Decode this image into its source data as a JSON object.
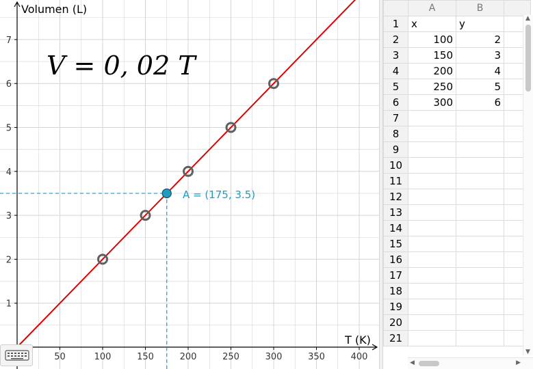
{
  "graph": {
    "y_axis_title": "Volumen (L)",
    "x_axis_title": "T (K)",
    "equation": "V = 0, 02 T",
    "x_ticks": [
      "50",
      "100",
      "150",
      "200",
      "250",
      "300",
      "350",
      "400"
    ],
    "y_ticks": [
      "1",
      "2",
      "3",
      "4",
      "5",
      "6",
      "7"
    ],
    "point_label": "A = (175, 3.5)",
    "line_color": "#e00000",
    "point_color": "#1e9bbf",
    "grid_color": "#d4d4d4"
  },
  "chart_data": {
    "type": "scatter",
    "x": [
      100,
      150,
      200,
      250,
      300
    ],
    "y": [
      2,
      3,
      4,
      5,
      6
    ],
    "line": {
      "slope": 0.02,
      "intercept": 0
    },
    "point_A": {
      "x": 175,
      "y": 3.5
    },
    "xlabel": "T (K)",
    "ylabel": "Volumen (L)",
    "xlim": [
      0,
      420
    ],
    "ylim": [
      0,
      7.8
    ],
    "grid": true
  },
  "spreadsheet": {
    "columns": [
      "A",
      "B"
    ],
    "rows": [
      {
        "num": "1",
        "a": "x",
        "b": "y"
      },
      {
        "num": "2",
        "a": "100",
        "b": "2"
      },
      {
        "num": "3",
        "a": "150",
        "b": "3"
      },
      {
        "num": "4",
        "a": "200",
        "b": "4"
      },
      {
        "num": "5",
        "a": "250",
        "b": "5"
      },
      {
        "num": "6",
        "a": "300",
        "b": "6"
      },
      {
        "num": "7",
        "a": "",
        "b": ""
      },
      {
        "num": "8",
        "a": "",
        "b": ""
      },
      {
        "num": "9",
        "a": "",
        "b": ""
      },
      {
        "num": "10",
        "a": "",
        "b": ""
      },
      {
        "num": "11",
        "a": "",
        "b": ""
      },
      {
        "num": "12",
        "a": "",
        "b": ""
      },
      {
        "num": "13",
        "a": "",
        "b": ""
      },
      {
        "num": "14",
        "a": "",
        "b": ""
      },
      {
        "num": "15",
        "a": "",
        "b": ""
      },
      {
        "num": "16",
        "a": "",
        "b": ""
      },
      {
        "num": "17",
        "a": "",
        "b": ""
      },
      {
        "num": "18",
        "a": "",
        "b": ""
      },
      {
        "num": "19",
        "a": "",
        "b": ""
      },
      {
        "num": "20",
        "a": "",
        "b": ""
      },
      {
        "num": "21",
        "a": "",
        "b": ""
      }
    ]
  }
}
